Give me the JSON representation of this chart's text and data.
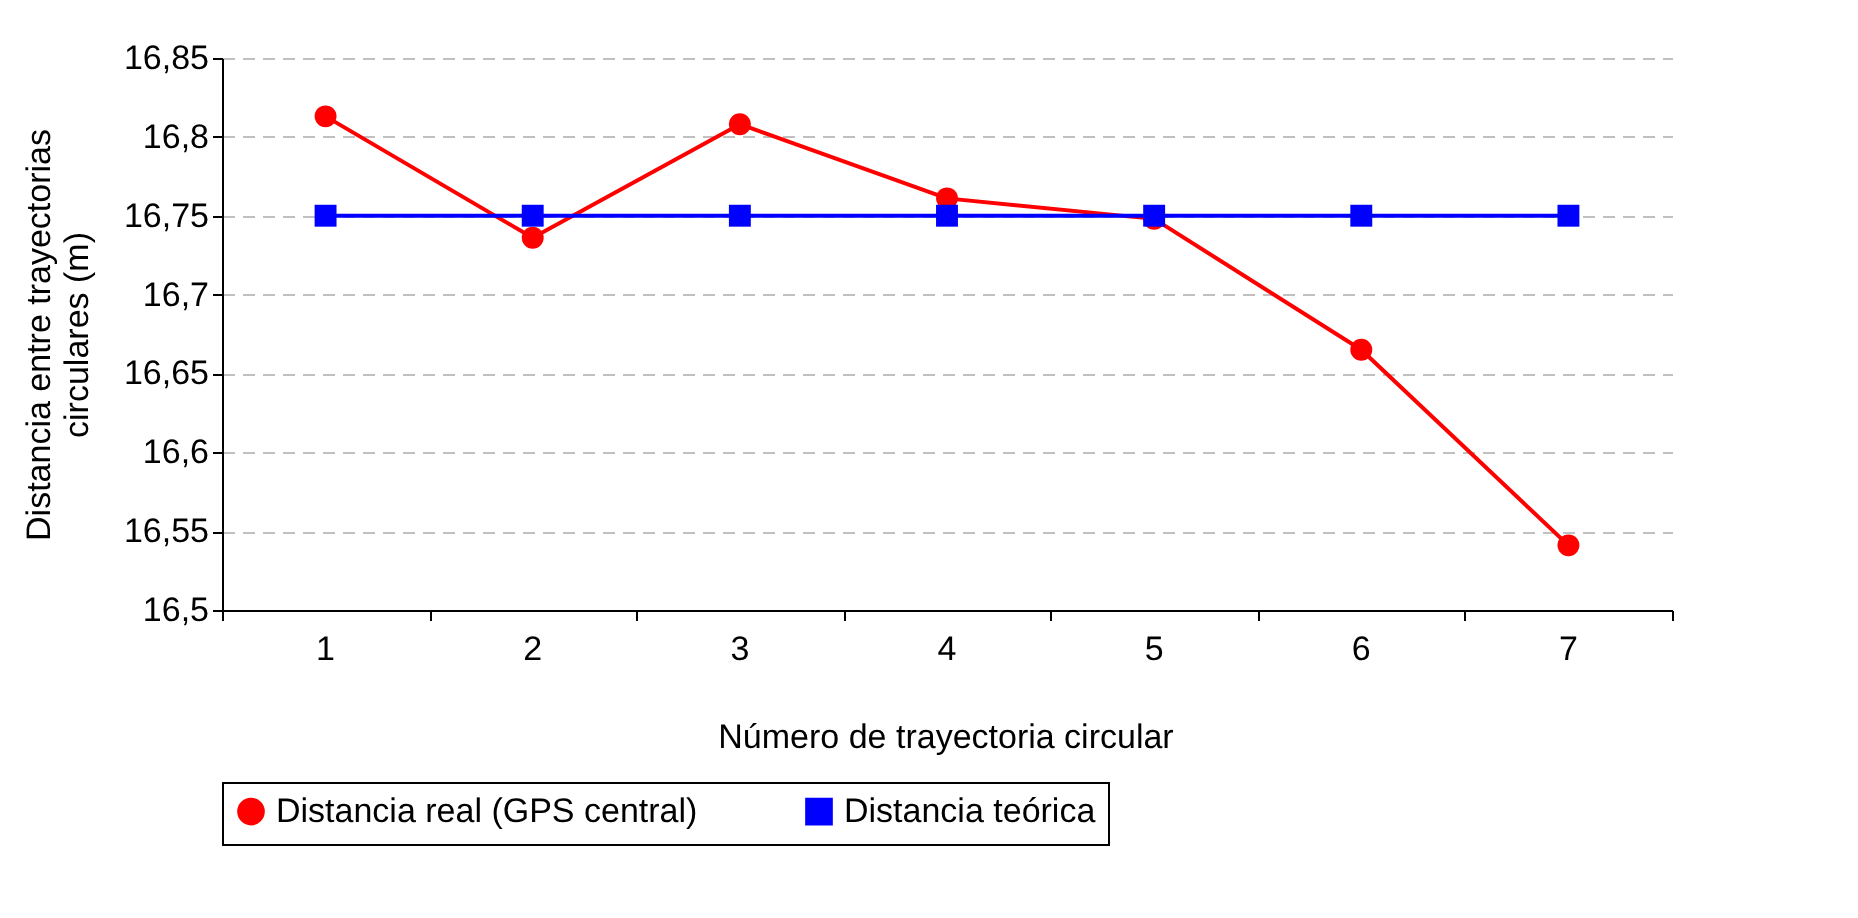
{
  "chart_data": {
    "type": "line",
    "xlabel": "Número de trayectoria circular",
    "ylabel": "Distancia entre trayectorias circulares (m)",
    "categories": [
      "1",
      "2",
      "3",
      "4",
      "5",
      "6",
      "7"
    ],
    "series": [
      {
        "name": "Distancia real (GPS central)",
        "color": "#ff0000",
        "marker": "circle",
        "values": [
          16.813,
          16.736,
          16.808,
          16.761,
          16.748,
          16.665,
          16.541
        ]
      },
      {
        "name": "Distancia teórica",
        "color": "#0000ff",
        "marker": "square",
        "values": [
          16.75,
          16.75,
          16.75,
          16.75,
          16.75,
          16.75,
          16.75
        ]
      }
    ],
    "ylim": [
      16.5,
      16.85
    ],
    "yticks": [
      {
        "value": 16.5,
        "label": "16,5"
      },
      {
        "value": 16.55,
        "label": "16,55"
      },
      {
        "value": 16.6,
        "label": "16,6"
      },
      {
        "value": 16.65,
        "label": "16,65"
      },
      {
        "value": 16.7,
        "label": "16,7"
      },
      {
        "value": 16.75,
        "label": "16,75"
      },
      {
        "value": 16.8,
        "label": "16,8"
      },
      {
        "value": 16.85,
        "label": "16,85"
      }
    ],
    "grid": "y",
    "legend": "bottom",
    "line_style": "solid"
  }
}
